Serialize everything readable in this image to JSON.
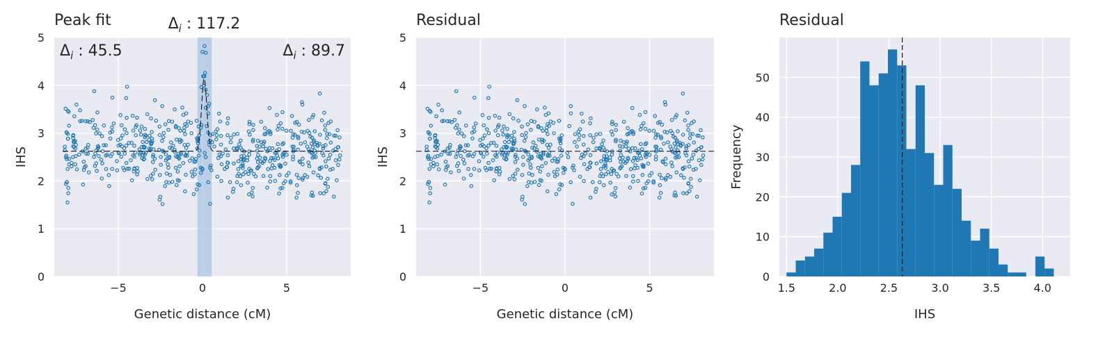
{
  "chart_data": [
    {
      "type": "scatter",
      "title": "Peak fit",
      "xlabel": "Genetic distance (cM)",
      "ylabel": "IHS",
      "xlim": [
        -8.8,
        8.8
      ],
      "ylim": [
        0,
        5
      ],
      "xticks": [
        -5,
        0,
        5
      ],
      "xtick_labels": [
        "−5",
        "0",
        "5"
      ],
      "yticks": [
        0,
        1,
        2,
        3,
        4,
        5
      ],
      "ytick_labels": [
        "0",
        "1",
        "2",
        "3",
        "4",
        "5"
      ],
      "grid": true,
      "baseline": 2.62,
      "peak_center": 0.1,
      "peak_band": [
        -0.3,
        0.55
      ],
      "peak_height": 4.15,
      "annotations": [
        {
          "label": "Δ",
          "sub": "i",
          "text": " : 45.5",
          "pos": "top-left"
        },
        {
          "label": "Δ",
          "sub": "i",
          "text": " : 117.2",
          "pos": "above-peak"
        },
        {
          "label": "Δ",
          "sub": "i",
          "text": " : 89.7",
          "pos": "top-right"
        }
      ],
      "color": "#1f77b4",
      "n_points": 600
    },
    {
      "type": "scatter",
      "title": "Residual",
      "xlabel": "Genetic distance (cM)",
      "ylabel": "IHS",
      "xlim": [
        -8.8,
        8.8
      ],
      "ylim": [
        0,
        5
      ],
      "xticks": [
        -5,
        0,
        5
      ],
      "xtick_labels": [
        "−5",
        "0",
        "5"
      ],
      "yticks": [
        0,
        1,
        2,
        3,
        4,
        5
      ],
      "ytick_labels": [
        "0",
        "1",
        "2",
        "3",
        "4",
        "5"
      ],
      "grid": true,
      "baseline": 2.62,
      "color": "#1f77b4",
      "n_points": 600
    },
    {
      "type": "bar",
      "title": "Residual",
      "xlabel": "IHS",
      "ylabel": "Frequency",
      "xlim": [
        1.43,
        4.27
      ],
      "ylim": [
        0,
        60
      ],
      "xticks": [
        1.5,
        2.0,
        2.5,
        3.0,
        3.5,
        4.0
      ],
      "xtick_labels": [
        "1.5",
        "2.0",
        "2.5",
        "3.0",
        "3.5",
        "4.0"
      ],
      "yticks": [
        0,
        10,
        20,
        30,
        40,
        50
      ],
      "ytick_labels": [
        "0",
        "10",
        "20",
        "30",
        "40",
        "50"
      ],
      "grid": true,
      "bin_start": 1.5,
      "bin_width": 0.09,
      "values": [
        1,
        4,
        5,
        7,
        11,
        15,
        21,
        28,
        54,
        48,
        51,
        57,
        53,
        32,
        48,
        31,
        23,
        33,
        22,
        14,
        9,
        12,
        7,
        3,
        1,
        1,
        0,
        5,
        2
      ],
      "vline": 2.63,
      "color": "#1f77b4"
    }
  ]
}
